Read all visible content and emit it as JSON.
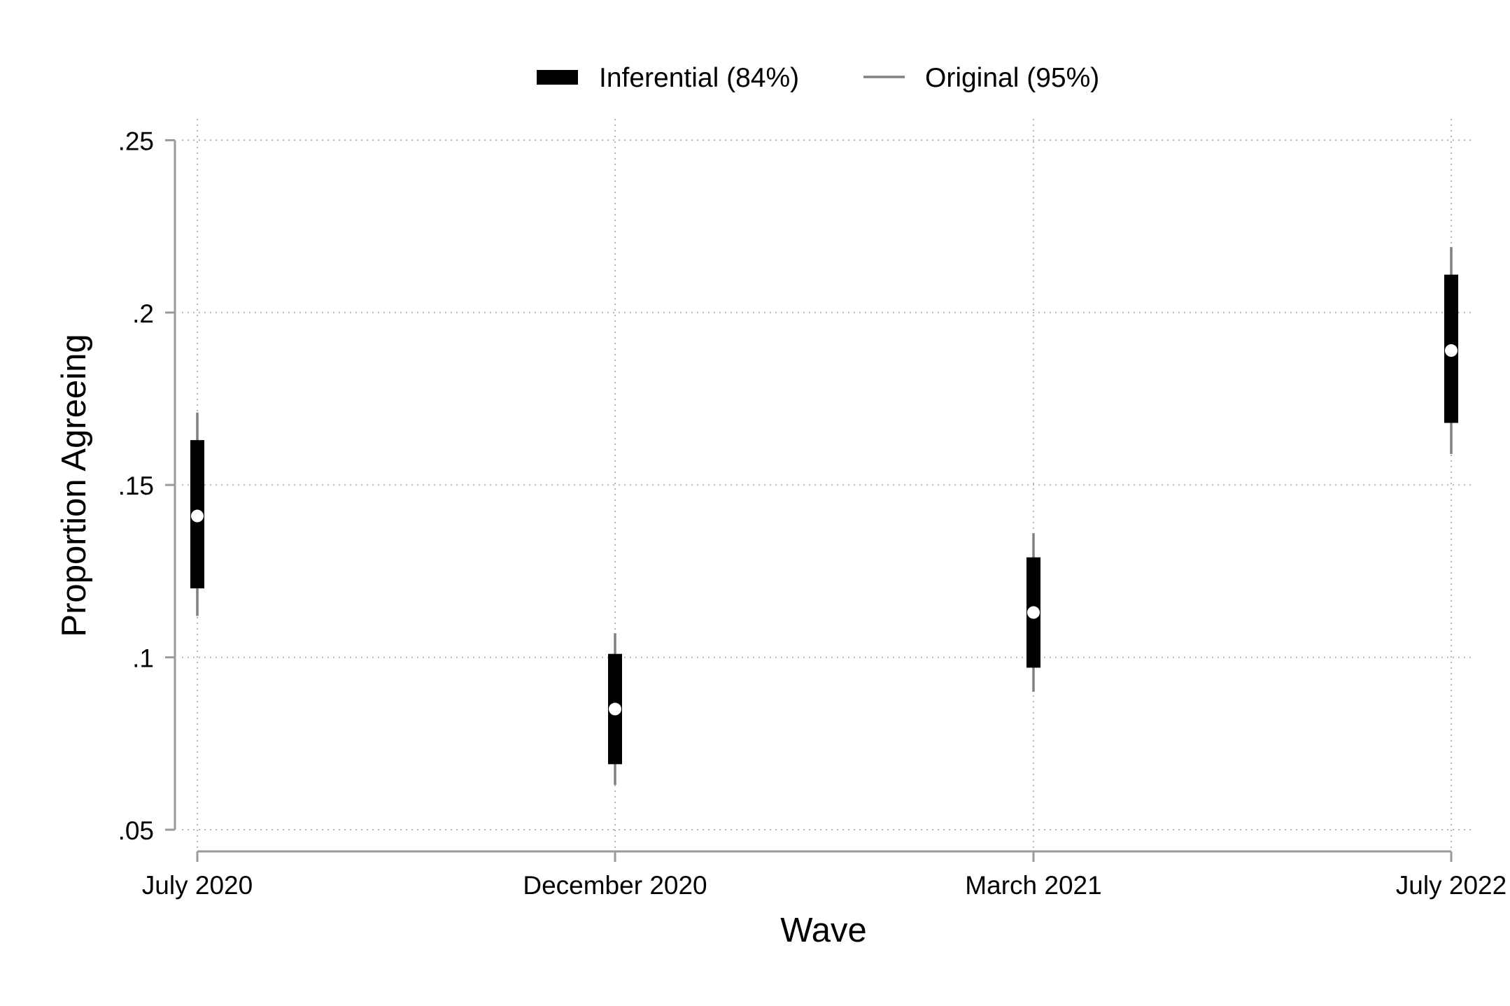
{
  "chart_data": {
    "type": "errorbar",
    "xlabel": "Wave",
    "ylabel": "Proportion Agreeing",
    "categories": [
      "July 2020",
      "December 2020",
      "March 2021",
      "July 2022"
    ],
    "yticks": [
      0.05,
      0.1,
      0.15,
      0.2,
      0.25
    ],
    "ytick_labels": [
      ".05",
      ".1",
      ".15",
      ".2",
      ".25"
    ],
    "ylim": [
      0.05,
      0.25
    ],
    "grid": true,
    "legend_position": "top",
    "legend": [
      {
        "name": "Inferential (84%)",
        "style": "thick-bar",
        "color": "#000000"
      },
      {
        "name": "Original (95%)",
        "style": "thin-line",
        "color": "#808080"
      }
    ],
    "series": [
      {
        "name": "Point estimate",
        "values": [
          0.141,
          0.085,
          0.113,
          0.189
        ]
      },
      {
        "name": "Inferential (84%)",
        "lower": [
          0.12,
          0.069,
          0.097,
          0.168
        ],
        "upper": [
          0.163,
          0.101,
          0.129,
          0.211
        ]
      },
      {
        "name": "Original (95%)",
        "lower": [
          0.112,
          0.063,
          0.09,
          0.159
        ],
        "upper": [
          0.171,
          0.107,
          0.136,
          0.219
        ]
      }
    ],
    "colors": {
      "inferential": "#000000",
      "original": "#808080",
      "point": "#ffffff",
      "axis": "#9a9a9a",
      "grid": "#b4b4b4"
    }
  }
}
